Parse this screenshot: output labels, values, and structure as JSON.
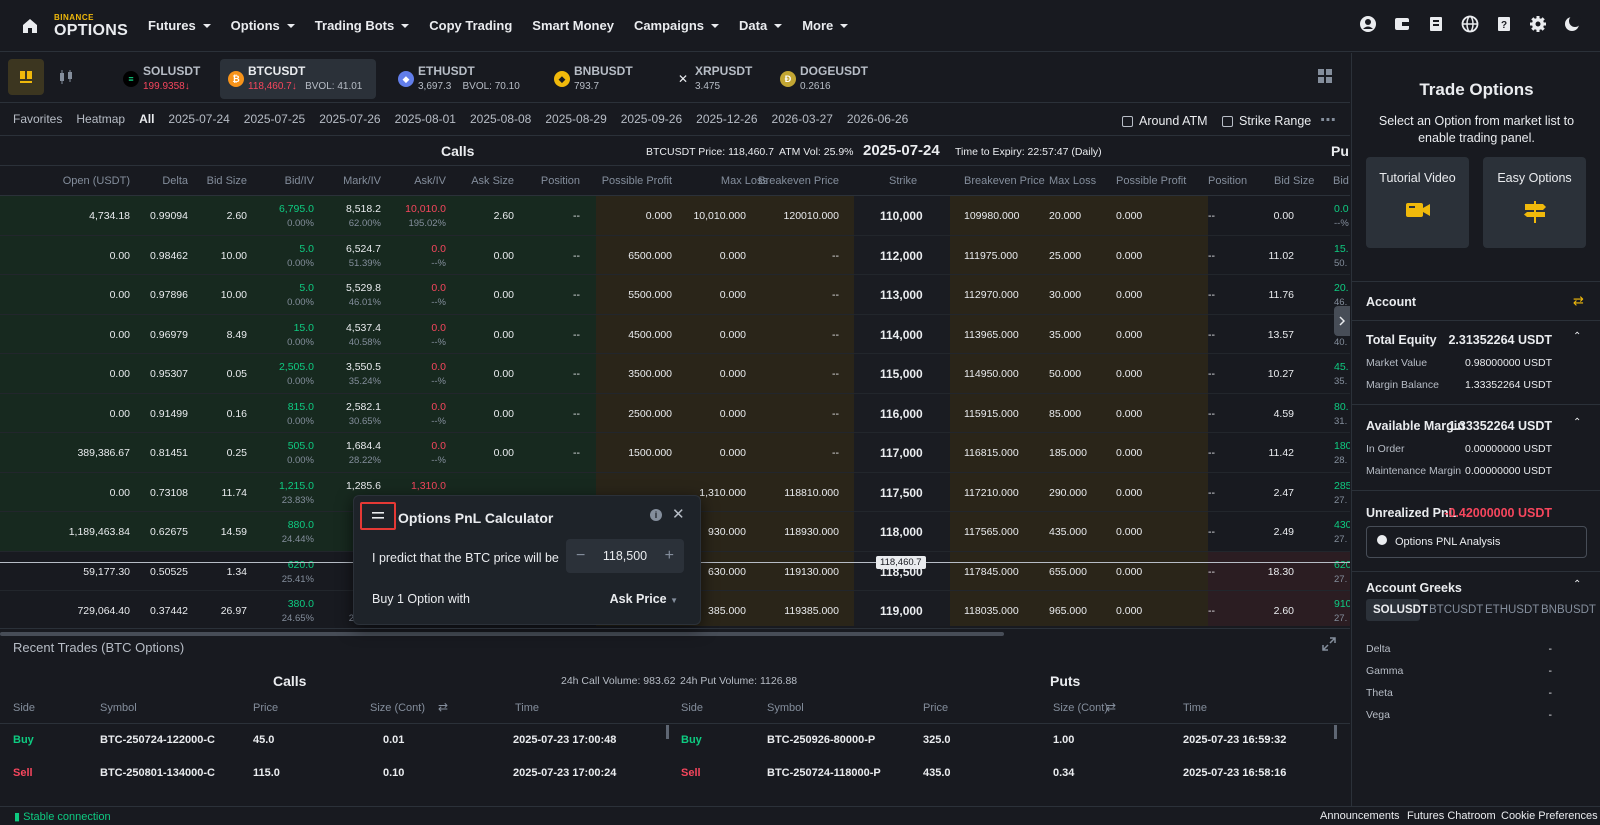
{
  "nav": {
    "logo_top": "BINANCE",
    "logo_bottom": "OPTIONS",
    "items": [
      "Futures",
      "Options",
      "Trading Bots",
      "Copy Trading",
      "Smart Money",
      "Campaigns",
      "Data",
      "More"
    ],
    "dropdowns": [
      true,
      true,
      true,
      false,
      false,
      true,
      true,
      true
    ]
  },
  "symbols": [
    {
      "name": "SOLUSDT",
      "price": "199.9358↓",
      "bvol": "",
      "color": "#14f195",
      "glyph": "≡"
    },
    {
      "name": "BTCUSDT",
      "price": "118,460.7↓",
      "bvol": "BVOL: 41.01",
      "color": "#f7931a",
      "glyph": "₿"
    },
    {
      "name": "ETHUSDT",
      "price": "3,697.3",
      "bvol": "BVOL: 70.10",
      "color": "#627eea",
      "glyph": "◆"
    },
    {
      "name": "BNBUSDT",
      "price": "793.7",
      "bvol": "",
      "color": "#f0b90b",
      "glyph": "◆"
    },
    {
      "name": "XRPUSDT",
      "price": "3.475",
      "bvol": "",
      "color": "#23292f",
      "glyph": "✕"
    },
    {
      "name": "DOGEUSDT",
      "price": "0.2616",
      "bvol": "",
      "color": "#c2a633",
      "glyph": "Ð"
    }
  ],
  "datebar": {
    "tabs": [
      "Favorites",
      "Heatmap",
      "All",
      "2025-07-24",
      "2025-07-25",
      "2025-07-26",
      "2025-08-01",
      "2025-08-08",
      "2025-08-29",
      "2025-09-26",
      "2025-12-26",
      "2026-03-27",
      "2026-06-26"
    ],
    "around_atm": "Around ATM",
    "strike_range": "Strike Range"
  },
  "chain_header": {
    "calls": "Calls",
    "puts": "Pu",
    "underlying": "BTCUSDT Price: 118,460.7",
    "atm_vol": "ATM Vol: 25.9%",
    "expiry": "2025-07-24",
    "time_to_expiry": "Time to Expiry: 22:57:47 (Daily)"
  },
  "columns": {
    "open": "Open (USDT)",
    "delta": "Delta",
    "bid_size": "Bid Size",
    "bid_iv": "Bid/IV",
    "mark_iv": "Mark/IV",
    "ask_iv": "Ask/IV",
    "ask_size": "Ask Size",
    "position": "Position",
    "possible_profit": "Possible Profit",
    "max_loss": "Max Loss",
    "breakeven": "Breakeven Price",
    "strike": "Strike",
    "p_breakeven": "Breakeven Price",
    "p_max_loss": "Max Loss",
    "p_possible_profit": "Possible Profit",
    "p_position": "Position",
    "p_bid_size": "Bid Size",
    "p_bid": "Bid"
  },
  "rows": [
    {
      "open": "4,734.18",
      "delta": "0.99094",
      "bid_size": "2.60",
      "bid": "6,795.0",
      "bid_iv": "0.00%",
      "mark": "8,518.2",
      "mark_iv": "62.00%",
      "ask": "10,010.0",
      "ask_iv": "195.02%",
      "ask_size": "2.60",
      "position": "--",
      "profit": "0.000",
      "loss": "10,010.000",
      "be": "120010.000",
      "strike": "110,000",
      "pbe": "109980.000",
      "ploss": "20.000",
      "pprofit": "0.000",
      "ppos": "--",
      "pbid_size": "0.00",
      "pbid": "0.0",
      "pbid_iv": "--%"
    },
    {
      "open": "0.00",
      "delta": "0.98462",
      "bid_size": "10.00",
      "bid": "5.0",
      "bid_iv": "0.00%",
      "mark": "6,524.7",
      "mark_iv": "51.39%",
      "ask": "0.0",
      "ask_iv": "--%",
      "ask_size": "0.00",
      "position": "--",
      "profit": "6500.000",
      "loss": "0.000",
      "be": "--",
      "strike": "112,000",
      "pbe": "111975.000",
      "ploss": "25.000",
      "pprofit": "0.000",
      "ppos": "--",
      "pbid_size": "11.02",
      "pbid": "15.",
      "pbid_iv": "50."
    },
    {
      "open": "0.00",
      "delta": "0.97896",
      "bid_size": "10.00",
      "bid": "5.0",
      "bid_iv": "0.00%",
      "mark": "5,529.8",
      "mark_iv": "46.01%",
      "ask": "0.0",
      "ask_iv": "--%",
      "ask_size": "0.00",
      "position": "--",
      "profit": "5500.000",
      "loss": "0.000",
      "be": "--",
      "strike": "113,000",
      "pbe": "112970.000",
      "ploss": "30.000",
      "pprofit": "0.000",
      "ppos": "--",
      "pbid_size": "11.76",
      "pbid": "20.",
      "pbid_iv": "46."
    },
    {
      "open": "0.00",
      "delta": "0.96979",
      "bid_size": "8.49",
      "bid": "15.0",
      "bid_iv": "0.00%",
      "mark": "4,537.4",
      "mark_iv": "40.58%",
      "ask": "0.0",
      "ask_iv": "--%",
      "ask_size": "0.00",
      "position": "--",
      "profit": "4500.000",
      "loss": "0.000",
      "be": "--",
      "strike": "114,000",
      "pbe": "113965.000",
      "ploss": "35.000",
      "pprofit": "0.000",
      "ppos": "--",
      "pbid_size": "13.57",
      "pbid": "35.",
      "pbid_iv": "40."
    },
    {
      "open": "0.00",
      "delta": "0.95307",
      "bid_size": "0.05",
      "bid": "2,505.0",
      "bid_iv": "0.00%",
      "mark": "3,550.5",
      "mark_iv": "35.24%",
      "ask": "0.0",
      "ask_iv": "--%",
      "ask_size": "0.00",
      "position": "--",
      "profit": "3500.000",
      "loss": "0.000",
      "be": "--",
      "strike": "115,000",
      "pbe": "114950.000",
      "ploss": "50.000",
      "pprofit": "0.000",
      "ppos": "--",
      "pbid_size": "10.27",
      "pbid": "45.",
      "pbid_iv": "35."
    },
    {
      "open": "0.00",
      "delta": "0.91499",
      "bid_size": "0.16",
      "bid": "815.0",
      "bid_iv": "0.00%",
      "mark": "2,582.1",
      "mark_iv": "30.65%",
      "ask": "0.0",
      "ask_iv": "--%",
      "ask_size": "0.00",
      "position": "--",
      "profit": "2500.000",
      "loss": "0.000",
      "be": "--",
      "strike": "116,000",
      "pbe": "115915.000",
      "ploss": "85.000",
      "pprofit": "0.000",
      "ppos": "--",
      "pbid_size": "4.59",
      "pbid": "80.",
      "pbid_iv": "31."
    },
    {
      "open": "389,386.67",
      "delta": "0.81451",
      "bid_size": "0.25",
      "bid": "505.0",
      "bid_iv": "0.00%",
      "mark": "1,684.4",
      "mark_iv": "28.22%",
      "ask": "0.0",
      "ask_iv": "--%",
      "ask_size": "0.00",
      "position": "--",
      "profit": "1500.000",
      "loss": "0.000",
      "be": "--",
      "strike": "117,000",
      "pbe": "116815.000",
      "ploss": "185.000",
      "pprofit": "0.000",
      "ppos": "--",
      "pbid_size": "11.42",
      "pbid": "180",
      "pbid_iv": "28."
    },
    {
      "open": "0.00",
      "delta": "0.73108",
      "bid_size": "11.74",
      "bid": "1,215.0",
      "bid_iv": "23.83%",
      "mark": "1,285.6",
      "mark_iv": "",
      "ask": "1,310.0",
      "ask_iv": "",
      "ask_size": "",
      "position": "",
      "profit": "",
      "loss": "1,310.000",
      "be": "118810.000",
      "strike": "117,500",
      "pbe": "117210.000",
      "ploss": "290.000",
      "pprofit": "0.000",
      "ppos": "--",
      "pbid_size": "2.47",
      "pbid": "285",
      "pbid_iv": "27."
    },
    {
      "open": "1,189,463.84",
      "delta": "0.62675",
      "bid_size": "14.59",
      "bid": "880.0",
      "bid_iv": "24.44%",
      "mark": "",
      "mark_iv": "",
      "ask": "",
      "ask_iv": "",
      "ask_size": "",
      "position": "",
      "profit": "",
      "loss": "930.000",
      "be": "118930.000",
      "strike": "118,000",
      "pbe": "117565.000",
      "ploss": "435.000",
      "pprofit": "0.000",
      "ppos": "--",
      "pbid_size": "2.49",
      "pbid": "430",
      "pbid_iv": "27."
    },
    {
      "open": "59,177.30",
      "delta": "0.50525",
      "bid_size": "1.34",
      "bid": "620.0",
      "bid_iv": "25.41%",
      "mark": "",
      "mark_iv": "",
      "ask": "",
      "ask_iv": "",
      "ask_size": "",
      "position": "",
      "profit": "",
      "loss": "630.000",
      "be": "119130.000",
      "strike": "118,500",
      "pbe": "117845.000",
      "ploss": "655.000",
      "pprofit": "0.000",
      "ppos": "--",
      "pbid_size": "18.30",
      "pbid": "620",
      "pbid_iv": "27."
    },
    {
      "open": "729,064.40",
      "delta": "0.37442",
      "bid_size": "26.97",
      "bid": "380.0",
      "bid_iv": "24.65%",
      "mark": "",
      "mark_iv": "24.67%",
      "ask": "",
      "ask_iv": "24.67%",
      "ask_size": "",
      "position": "",
      "profit": "",
      "loss": "385.000",
      "be": "119385.000",
      "strike": "119,000",
      "pbe": "118035.000",
      "ploss": "965.000",
      "pprofit": "0.000",
      "ppos": "--",
      "pbid_size": "2.60",
      "pbid": "910",
      "pbid_iv": "27."
    }
  ],
  "atm_tag": "118,460.7",
  "calculator": {
    "title": "Options PnL Calculator",
    "predict_label": "I predict that the BTC price will be",
    "price": "118,500",
    "minus": "−",
    "plus": "+",
    "buy_label": "Buy 1 Option with",
    "price_type": "Ask Price"
  },
  "recent": {
    "title": "Recent Trades (BTC Options)",
    "calls": "Calls",
    "puts": "Puts",
    "call_vol": "24h Call Volume: 983.62",
    "put_vol": "24h Put Volume: 1126.88",
    "headers": {
      "side": "Side",
      "symbol": "Symbol",
      "price": "Price",
      "size": "Size (Cont)",
      "time": "Time"
    },
    "call_trades": [
      {
        "side": "Buy",
        "symbol": "BTC-250724-122000-C",
        "price": "45.0",
        "size": "0.01",
        "time": "2025-07-23 17:00:48"
      },
      {
        "side": "Sell",
        "symbol": "BTC-250801-134000-C",
        "price": "115.0",
        "size": "0.10",
        "time": "2025-07-23 17:00:24"
      }
    ],
    "put_trades": [
      {
        "side": "Buy",
        "symbol": "BTC-250926-80000-P",
        "price": "325.0",
        "size": "1.00",
        "time": "2025-07-23 16:59:32"
      },
      {
        "side": "Sell",
        "symbol": "BTC-250724-118000-P",
        "price": "435.0",
        "size": "0.34",
        "time": "2025-07-23 16:58:16"
      }
    ]
  },
  "footer": {
    "status": "Stable connection",
    "links": [
      "Announcements",
      "Futures Chatroom",
      "Cookie Preferences"
    ]
  },
  "right": {
    "title": "Trade Options",
    "subtitle1": "Select an Option from market list to",
    "subtitle2": "enable trading panel.",
    "tutorial": "Tutorial Video",
    "easy": "Easy Options",
    "account": "Account",
    "total_equity_label": "Total Equity",
    "total_equity": "2.31352264 USDT",
    "market_value_label": "Market Value",
    "market_value": "0.98000000 USDT",
    "margin_balance_label": "Margin Balance",
    "margin_balance": "1.33352264 USDT",
    "available_margin_label": "Available Margin",
    "available_margin": "1.33352264 USDT",
    "in_order_label": "In Order",
    "in_order": "0.00000000 USDT",
    "maint_label": "Maintenance Margin",
    "maint": "0.00000000 USDT",
    "upnl_label": "Unrealized PnL",
    "upnl": "-0.42000000 USDT",
    "pnl_analysis": "Options PNL Analysis",
    "greeks_title": "Account Greeks",
    "greek_tabs": [
      "SOLUSDT",
      "BTCUSDT",
      "ETHUSDT",
      "BNBUSDT"
    ],
    "greeks": [
      {
        "name": "Delta",
        "value": "-"
      },
      {
        "name": "Gamma",
        "value": "-"
      },
      {
        "name": "Theta",
        "value": "-"
      },
      {
        "name": "Vega",
        "value": "-"
      }
    ]
  },
  "colors": {
    "bg": "#181a20",
    "panel": "#2b3139",
    "green": "#0ecb81",
    "red": "#f6465d",
    "yellow": "#f0b90b"
  }
}
